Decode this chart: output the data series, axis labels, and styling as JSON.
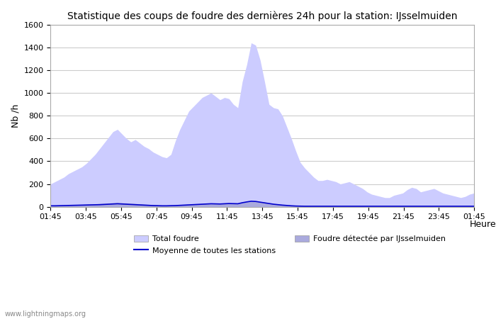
{
  "title": "Statistique des coups de foudre des dernières 24h pour la station: IJsselmuiden",
  "ylabel": "Nb /h",
  "xlabel": "Heure",
  "ylim": [
    0,
    1600
  ],
  "yticks": [
    0,
    200,
    400,
    600,
    800,
    1000,
    1200,
    1400,
    1600
  ],
  "xtick_labels": [
    "01:45",
    "03:45",
    "05:45",
    "07:45",
    "09:45",
    "11:45",
    "13:45",
    "15:45",
    "17:45",
    "19:45",
    "21:45",
    "23:45",
    "01:45"
  ],
  "watermark": "www.lightningmaps.org",
  "legend_labels": [
    "Total foudre",
    "Moyenne de toutes les stations",
    "Foudre détectée par IJsselmuiden"
  ],
  "fill_total_color": "#ccccff",
  "fill_local_color": "#aaaadd",
  "line_mean_color": "#0000cc",
  "background_color": "#ffffff",
  "grid_color": "#cccccc",
  "total_foudre": [
    200,
    220,
    240,
    260,
    290,
    310,
    330,
    350,
    380,
    420,
    460,
    510,
    560,
    610,
    660,
    680,
    640,
    600,
    570,
    590,
    560,
    530,
    510,
    480,
    460,
    440,
    430,
    460,
    580,
    680,
    760,
    840,
    880,
    920,
    960,
    980,
    1000,
    970,
    940,
    960,
    950,
    900,
    870,
    1100,
    1250,
    1440,
    1420,
    1290,
    1100,
    900,
    870,
    860,
    800,
    700,
    600,
    490,
    390,
    340,
    300,
    260,
    230,
    230,
    240,
    230,
    220,
    200,
    210,
    220,
    200,
    180,
    160,
    130,
    110,
    100,
    90,
    80,
    80,
    100,
    110,
    120,
    150,
    170,
    160,
    130,
    140,
    150,
    160,
    140,
    120,
    110,
    100,
    90,
    80,
    90,
    110,
    120
  ],
  "foudre_locale": [
    5,
    7,
    9,
    11,
    13,
    15,
    17,
    19,
    21,
    23,
    25,
    28,
    30,
    33,
    35,
    37,
    35,
    33,
    30,
    28,
    25,
    22,
    20,
    18,
    15,
    13,
    11,
    13,
    15,
    17,
    19,
    21,
    23,
    25,
    27,
    29,
    31,
    30,
    28,
    30,
    32,
    30,
    28,
    35,
    40,
    45,
    43,
    38,
    33,
    28,
    24,
    20,
    16,
    13,
    10,
    8,
    6,
    5,
    4,
    3,
    3,
    3,
    3,
    3,
    3,
    3,
    3,
    3,
    3,
    3,
    3,
    3,
    3,
    3,
    3,
    3,
    3,
    3,
    3,
    3,
    3,
    3,
    3,
    3,
    3,
    3,
    3,
    3,
    3,
    3,
    3,
    3,
    3,
    3,
    3,
    3
  ],
  "moyenne": [
    8,
    8,
    9,
    10,
    11,
    12,
    13,
    14,
    15,
    16,
    17,
    18,
    20,
    22,
    24,
    26,
    24,
    22,
    20,
    18,
    16,
    14,
    12,
    10,
    9,
    8,
    8,
    9,
    10,
    12,
    14,
    16,
    18,
    20,
    22,
    24,
    26,
    25,
    24,
    26,
    28,
    27,
    26,
    35,
    42,
    48,
    46,
    40,
    34,
    28,
    22,
    18,
    14,
    11,
    8,
    6,
    5,
    4,
    4,
    4,
    4,
    4,
    4,
    4,
    4,
    4,
    4,
    4,
    4,
    4,
    4,
    4,
    4,
    4,
    4,
    4,
    4,
    4,
    4,
    4,
    4,
    4,
    4,
    4,
    4,
    4,
    4,
    4,
    4,
    4,
    4,
    4,
    4,
    4,
    4,
    4
  ]
}
